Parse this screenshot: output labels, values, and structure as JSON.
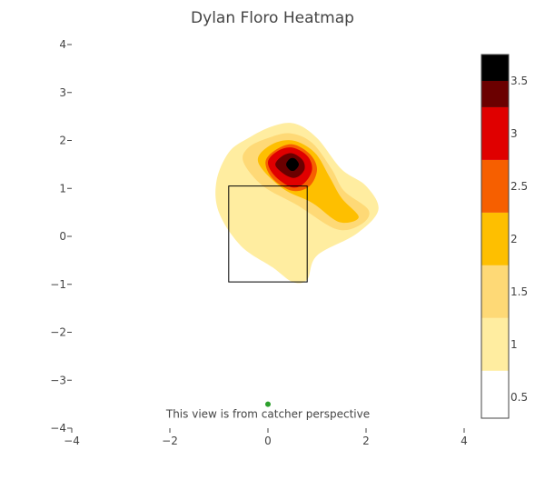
{
  "chart_data": {
    "type": "heatmap",
    "title": "Dylan Floro Heatmap",
    "xlabel": "",
    "ylabel": "",
    "xlim": [
      -4,
      4
    ],
    "ylim": [
      -4,
      4
    ],
    "x_ticks": [
      -4,
      -2,
      0,
      2,
      4
    ],
    "y_ticks": [
      -4,
      -3,
      -2,
      -1,
      0,
      1,
      2,
      3,
      4
    ],
    "x_tick_labels": [
      "−4",
      "−2",
      "0",
      "2",
      "4"
    ],
    "y_tick_labels": [
      "−4",
      "−3",
      "−2",
      "−1",
      "0",
      "1",
      "2",
      "3",
      "4"
    ],
    "grid": false,
    "annotation": "This view is from catcher perspective",
    "strike_zone": {
      "x": [
        -0.8,
        0.8
      ],
      "y": [
        -0.95,
        1.05
      ]
    },
    "catcher_point": {
      "x": 0,
      "y": -3.5,
      "color": "#2ca02c"
    },
    "density_peak": {
      "x": 0.5,
      "y": 1.5
    },
    "levels": [
      {
        "range": [
          0.5,
          1.0
        ],
        "color": "#ffeda0",
        "contour": [
          [
            -1.05,
            1.15
          ],
          [
            -0.8,
            1.75
          ],
          [
            -0.4,
            2.05
          ],
          [
            0.1,
            2.3
          ],
          [
            0.55,
            2.35
          ],
          [
            1.0,
            2.05
          ],
          [
            1.5,
            1.4
          ],
          [
            2.0,
            1.05
          ],
          [
            2.25,
            0.55
          ],
          [
            1.8,
            0.05
          ],
          [
            1.0,
            -0.4
          ],
          [
            0.8,
            -0.9
          ],
          [
            0.5,
            -0.95
          ],
          [
            0.1,
            -0.65
          ],
          [
            -0.55,
            -0.2
          ],
          [
            -1.0,
            0.5
          ]
        ]
      },
      {
        "range": [
          1.0,
          1.5
        ],
        "color": "#fed976",
        "contour": [
          [
            -0.5,
            1.55
          ],
          [
            -0.4,
            1.85
          ],
          [
            0,
            2.05
          ],
          [
            0.45,
            2.15
          ],
          [
            0.9,
            1.95
          ],
          [
            1.3,
            1.4
          ],
          [
            1.55,
            0.95
          ],
          [
            2.05,
            0.55
          ],
          [
            1.9,
            0.25
          ],
          [
            1.4,
            0.15
          ],
          [
            0.6,
            0.65
          ],
          [
            -0.1,
            1.05
          ]
        ]
      },
      {
        "range": [
          1.5,
          2.0
        ],
        "color": "#febf00",
        "contour": [
          [
            -0.2,
            1.55
          ],
          [
            0.05,
            1.9
          ],
          [
            0.5,
            2.0
          ],
          [
            0.95,
            1.75
          ],
          [
            1.25,
            1.25
          ],
          [
            1.5,
            0.8
          ],
          [
            1.85,
            0.4
          ],
          [
            1.45,
            0.3
          ],
          [
            0.9,
            0.7
          ],
          [
            0.3,
            1.0
          ]
        ]
      },
      {
        "range": [
          2.0,
          2.5
        ],
        "color": "#f65f00",
        "contour": [
          [
            -0.05,
            1.55
          ],
          [
            0.15,
            1.8
          ],
          [
            0.5,
            1.92
          ],
          [
            0.85,
            1.72
          ],
          [
            1.0,
            1.4
          ],
          [
            0.85,
            1.05
          ],
          [
            0.5,
            0.95
          ],
          [
            0.1,
            1.2
          ]
        ]
      },
      {
        "range": [
          2.5,
          3.0
        ],
        "color": "#e00000",
        "contour": [
          [
            0.0,
            1.55
          ],
          [
            0.2,
            1.78
          ],
          [
            0.5,
            1.85
          ],
          [
            0.8,
            1.68
          ],
          [
            0.9,
            1.4
          ],
          [
            0.75,
            1.12
          ],
          [
            0.5,
            1.02
          ],
          [
            0.15,
            1.25
          ]
        ]
      },
      {
        "range": [
          3.0,
          3.5
        ],
        "color": "#6b0000",
        "contour": [
          [
            0.15,
            1.5
          ],
          [
            0.3,
            1.68
          ],
          [
            0.5,
            1.73
          ],
          [
            0.7,
            1.6
          ],
          [
            0.75,
            1.42
          ],
          [
            0.65,
            1.27
          ],
          [
            0.5,
            1.22
          ],
          [
            0.3,
            1.32
          ]
        ]
      },
      {
        "range": [
          3.5,
          3.75
        ],
        "color": "#000000",
        "contour": [
          [
            0.37,
            1.5
          ],
          [
            0.45,
            1.62
          ],
          [
            0.55,
            1.62
          ],
          [
            0.63,
            1.5
          ],
          [
            0.55,
            1.38
          ],
          [
            0.45,
            1.38
          ]
        ]
      }
    ],
    "colorbar": {
      "range": [
        0.3,
        3.75
      ],
      "tick_values": [
        0.5,
        1,
        1.5,
        2,
        2.5,
        3,
        3.5
      ],
      "tick_labels": [
        "0.5",
        "1",
        "1.5",
        "2",
        "2.5",
        "3",
        "3.5"
      ],
      "bands": [
        {
          "from": 0.3,
          "to": 0.75,
          "color": "#ffffff"
        },
        {
          "from": 0.75,
          "to": 1.25,
          "color": "#ffeda0"
        },
        {
          "from": 1.25,
          "to": 1.75,
          "color": "#fed976"
        },
        {
          "from": 1.75,
          "to": 2.25,
          "color": "#febf00"
        },
        {
          "from": 2.25,
          "to": 2.75,
          "color": "#f65f00"
        },
        {
          "from": 2.75,
          "to": 3.25,
          "color": "#e00000"
        },
        {
          "from": 3.25,
          "to": 3.5,
          "color": "#6b0000"
        },
        {
          "from": 3.5,
          "to": 3.75,
          "color": "#000000"
        }
      ]
    }
  }
}
